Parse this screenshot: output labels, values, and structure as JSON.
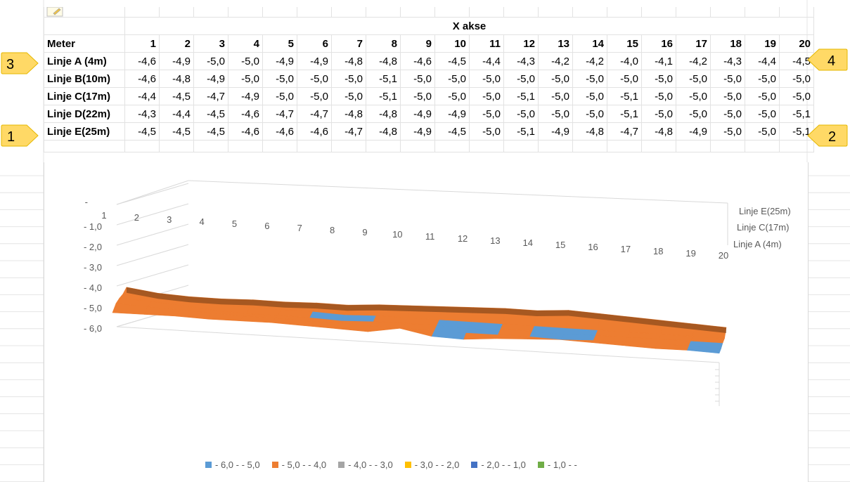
{
  "table": {
    "axis_title": "X akse",
    "corner_label": "Meter",
    "columns": [
      "1",
      "2",
      "3",
      "4",
      "5",
      "6",
      "7",
      "8",
      "9",
      "10",
      "11",
      "12",
      "13",
      "14",
      "15",
      "16",
      "17",
      "18",
      "19",
      "20"
    ],
    "rows": [
      {
        "label": "Linje A (4m)",
        "values": [
          "-4,6",
          "-4,9",
          "-5,0",
          "-5,0",
          "-4,9",
          "-4,9",
          "-4,8",
          "-4,8",
          "-4,6",
          "-4,5",
          "-4,4",
          "-4,3",
          "-4,2",
          "-4,2",
          "-4,0",
          "-4,1",
          "-4,2",
          "-4,3",
          "-4,4",
          "-4,5"
        ]
      },
      {
        "label": "Linje B(10m)",
        "values": [
          "-4,6",
          "-4,8",
          "-4,9",
          "-5,0",
          "-5,0",
          "-5,0",
          "-5,0",
          "-5,1",
          "-5,0",
          "-5,0",
          "-5,0",
          "-5,0",
          "-5,0",
          "-5,0",
          "-5,0",
          "-5,0",
          "-5,0",
          "-5,0",
          "-5,0",
          "-5,0"
        ]
      },
      {
        "label": "Linje C(17m)",
        "values": [
          "-4,4",
          "-4,5",
          "-4,7",
          "-4,9",
          "-5,0",
          "-5,0",
          "-5,0",
          "-5,1",
          "-5,0",
          "-5,0",
          "-5,0",
          "-5,1",
          "-5,0",
          "-5,0",
          "-5,1",
          "-5,0",
          "-5,0",
          "-5,0",
          "-5,0",
          "-5,0"
        ]
      },
      {
        "label": "Linje D(22m)",
        "values": [
          "-4,3",
          "-4,4",
          "-4,5",
          "-4,6",
          "-4,7",
          "-4,7",
          "-4,8",
          "-4,8",
          "-4,9",
          "-4,9",
          "-5,0",
          "-5,0",
          "-5,0",
          "-5,0",
          "-5,1",
          "-5,0",
          "-5,0",
          "-5,0",
          "-5,0",
          "-5,1"
        ]
      },
      {
        "label": "Linje E(25m)",
        "values": [
          "-4,5",
          "-4,5",
          "-4,5",
          "-4,6",
          "-4,6",
          "-4,6",
          "-4,7",
          "-4,8",
          "-4,9",
          "-4,5",
          "-5,0",
          "-5,1",
          "-4,9",
          "-4,8",
          "-4,7",
          "-4,8",
          "-4,9",
          "-5,0",
          "-5,0",
          "-5,1"
        ]
      }
    ]
  },
  "callouts": [
    "1",
    "2",
    "3",
    "4"
  ],
  "colors": {
    "band_6_5": "#5b9bd5",
    "band_5_4": "#ed7d31",
    "band_4_3": "#a5a5a5",
    "band_3_2": "#ffc000",
    "band_2_1": "#4472c4",
    "band_1_0": "#70ad47",
    "callout_fill": "#ffd966",
    "callout_stroke": "#e6b800",
    "shadow": "#6b3a14",
    "axis_text": "#595959",
    "grid": "#d9d9d9"
  },
  "chart_data": {
    "type": "surface",
    "x": [
      1,
      2,
      3,
      4,
      5,
      6,
      7,
      8,
      9,
      10,
      11,
      12,
      13,
      14,
      15,
      16,
      17,
      18,
      19,
      20
    ],
    "depth_tick_labels": [
      "Linje A (4m)",
      "Linje C(17m)",
      "Linje E(25m)"
    ],
    "z_tick_labels": [
      "- 6,0",
      "- 5,0",
      "- 4,0",
      "- 3,0",
      "- 2,0",
      "- 1,0",
      "-"
    ],
    "zlim": [
      -6.0,
      0.0
    ],
    "series": [
      {
        "name": "Linje A (4m)",
        "values": [
          -4.6,
          -4.9,
          -5.0,
          -5.0,
          -4.9,
          -4.9,
          -4.8,
          -4.8,
          -4.6,
          -4.5,
          -4.4,
          -4.3,
          -4.2,
          -4.2,
          -4.0,
          -4.1,
          -4.2,
          -4.3,
          -4.4,
          -4.5
        ]
      },
      {
        "name": "Linje B(10m)",
        "values": [
          -4.6,
          -4.8,
          -4.9,
          -5.0,
          -5.0,
          -5.0,
          -5.0,
          -5.1,
          -5.0,
          -5.0,
          -5.0,
          -5.0,
          -5.0,
          -5.0,
          -5.0,
          -5.0,
          -5.0,
          -5.0,
          -5.0,
          -5.0
        ]
      },
      {
        "name": "Linje C(17m)",
        "values": [
          -4.4,
          -4.5,
          -4.7,
          -4.9,
          -5.0,
          -5.0,
          -5.0,
          -5.1,
          -5.0,
          -5.0,
          -5.0,
          -5.1,
          -5.0,
          -5.0,
          -5.1,
          -5.0,
          -5.0,
          -5.0,
          -5.0,
          -5.0
        ]
      },
      {
        "name": "Linje D(22m)",
        "values": [
          -4.3,
          -4.4,
          -4.5,
          -4.6,
          -4.7,
          -4.7,
          -4.8,
          -4.8,
          -4.9,
          -4.9,
          -5.0,
          -5.0,
          -5.0,
          -5.0,
          -5.1,
          -5.0,
          -5.0,
          -5.0,
          -5.0,
          -5.1
        ]
      },
      {
        "name": "Linje E(25m)",
        "values": [
          -4.5,
          -4.5,
          -4.5,
          -4.6,
          -4.6,
          -4.6,
          -4.7,
          -4.8,
          -4.9,
          -4.5,
          -5.0,
          -5.1,
          -4.9,
          -4.8,
          -4.7,
          -4.8,
          -4.9,
          -5.0,
          -5.0,
          -5.1
        ]
      }
    ],
    "legend": [
      {
        "label": "- 6,0 - - 5,0",
        "range": [
          -6.0,
          -5.0
        ],
        "color": "#5b9bd5"
      },
      {
        "label": "- 5,0 - - 4,0",
        "range": [
          -5.0,
          -4.0
        ],
        "color": "#ed7d31"
      },
      {
        "label": "- 4,0 - - 3,0",
        "range": [
          -4.0,
          -3.0
        ],
        "color": "#a5a5a5"
      },
      {
        "label": "- 3,0 - - 2,0",
        "range": [
          -3.0,
          -2.0
        ],
        "color": "#ffc000"
      },
      {
        "label": "- 2,0 - - 1,0",
        "range": [
          -2.0,
          -1.0
        ],
        "color": "#4472c4"
      },
      {
        "label": "- 1,0 - -",
        "range": [
          -1.0,
          0.0
        ],
        "color": "#70ad47"
      }
    ],
    "legend_position": "bottom",
    "grid": true
  }
}
